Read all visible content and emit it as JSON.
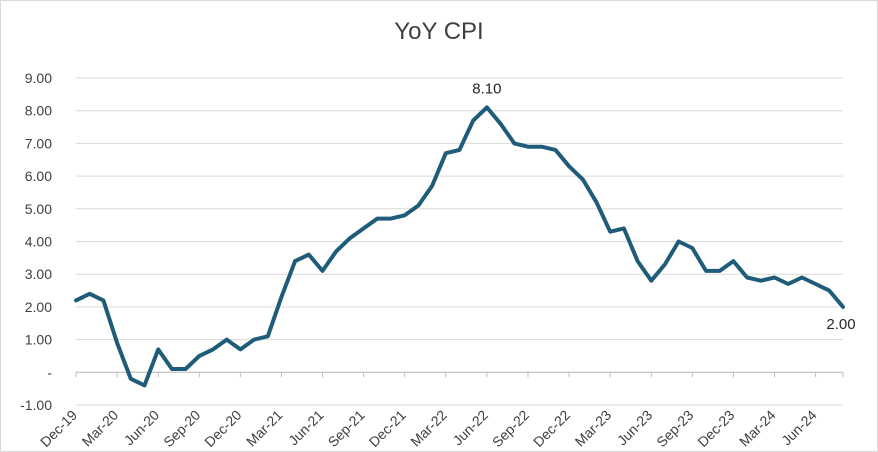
{
  "chart_data": {
    "type": "line",
    "title": "YoY CPI",
    "xlabel": "",
    "ylabel": "",
    "ylim": [
      -1,
      9
    ],
    "y_tick_labels": [
      "-1.00",
      "-",
      "1.00",
      "2.00",
      "3.00",
      "4.00",
      "5.00",
      "6.00",
      "7.00",
      "8.00",
      "9.00"
    ],
    "x_tick_labels": [
      "Dec-19",
      "Mar-20",
      "Jun-20",
      "Sep-20",
      "Dec-20",
      "Mar-21",
      "Jun-21",
      "Sep-21",
      "Dec-21",
      "Mar-22",
      "Jun-22",
      "Sep-22",
      "Dec-22",
      "Mar-23",
      "Jun-23",
      "Sep-23",
      "Dec-23",
      "Mar-24",
      "Jun-24"
    ],
    "grid": "horizontal",
    "line_color": "#1f5c7a",
    "series": [
      {
        "x": [
          "Dec-19",
          "Jan-20",
          "Feb-20",
          "Mar-20",
          "Apr-20",
          "May-20",
          "Jun-20",
          "Jul-20",
          "Aug-20",
          "Sep-20",
          "Oct-20",
          "Nov-20",
          "Dec-20",
          "Jan-21",
          "Feb-21",
          "Mar-21",
          "Apr-21",
          "May-21",
          "Jun-21",
          "Jul-21",
          "Aug-21",
          "Sep-21",
          "Oct-21",
          "Nov-21",
          "Dec-21",
          "Jan-22",
          "Feb-22",
          "Mar-22",
          "Apr-22",
          "May-22",
          "Jun-22",
          "Jul-22",
          "Aug-22",
          "Sep-22",
          "Oct-22",
          "Nov-22",
          "Dec-22",
          "Jan-23",
          "Feb-23",
          "Mar-23",
          "Apr-23",
          "May-23",
          "Jun-23",
          "Jul-23",
          "Aug-23",
          "Sep-23",
          "Oct-23",
          "Nov-23",
          "Dec-23",
          "Jan-24",
          "Feb-24",
          "Mar-24",
          "Apr-24",
          "May-24",
          "Jun-24",
          "Jul-24",
          "Aug-24"
        ],
        "values": [
          2.2,
          2.4,
          2.2,
          0.9,
          -0.2,
          -0.4,
          0.7,
          0.1,
          0.1,
          0.5,
          0.7,
          1.0,
          0.7,
          1.0,
          1.1,
          2.3,
          3.4,
          3.6,
          3.1,
          3.7,
          4.1,
          4.4,
          4.7,
          4.7,
          4.8,
          5.1,
          5.7,
          6.7,
          6.8,
          7.7,
          8.1,
          7.6,
          7.0,
          6.9,
          6.9,
          6.8,
          6.3,
          5.9,
          5.2,
          4.3,
          4.4,
          3.4,
          2.8,
          3.3,
          4.0,
          3.8,
          3.1,
          3.1,
          3.4,
          2.9,
          2.8,
          2.9,
          2.7,
          2.9,
          2.7,
          2.5,
          2.0
        ]
      }
    ],
    "annotations": [
      {
        "index": 30,
        "text": "8.10",
        "position": "above"
      },
      {
        "index": 56,
        "text": "2.00",
        "position": "below"
      }
    ]
  }
}
